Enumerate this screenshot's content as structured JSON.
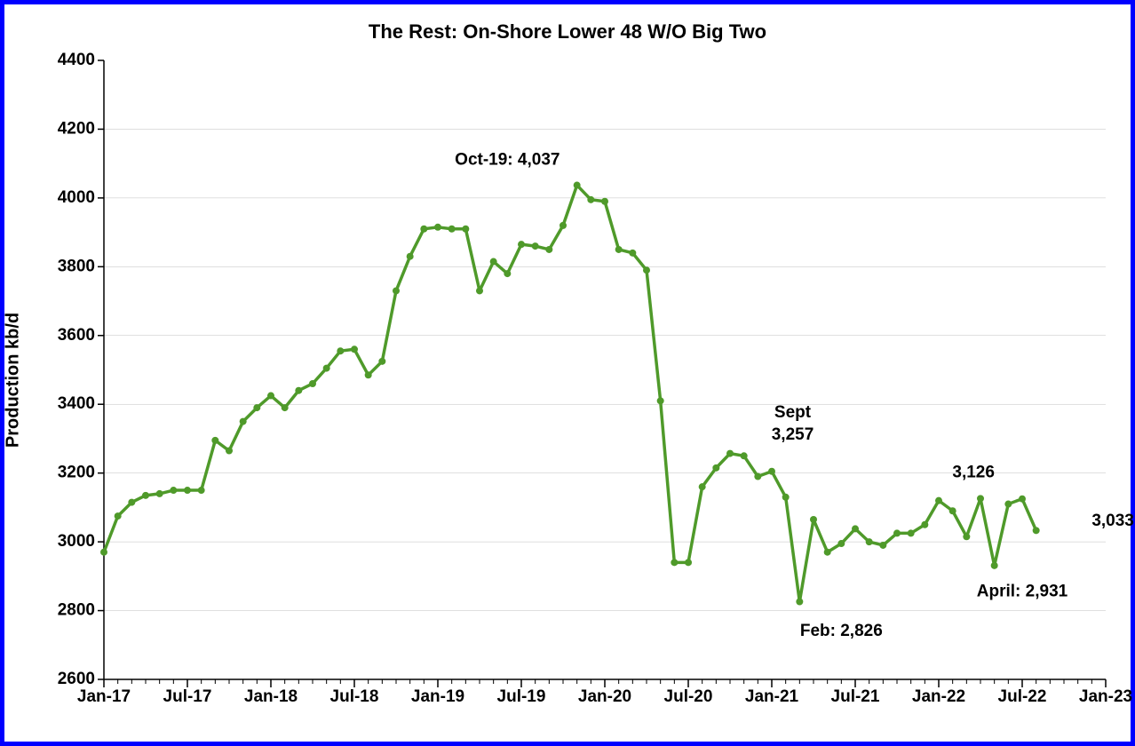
{
  "chart": {
    "type": "line",
    "title": "The Rest: On-Shore Lower 48 W/O Big Two",
    "title_fontsize": 22,
    "ylabel": "Production kb/d",
    "ylabel_fontsize": 20,
    "background_color": "#ffffff",
    "border_color": "#0000ff",
    "border_width": 5,
    "axis_color": "#000000",
    "grid_color": "#000000",
    "grid_opacity": 0.5,
    "label_fontsize": 19,
    "annotation_fontsize": 19,
    "ylim": [
      2600,
      4400
    ],
    "ytick_step": 200,
    "xlim_months": [
      0,
      72
    ],
    "xtick_labels": [
      "Jan-17",
      "Jul-17",
      "Jan-18",
      "Jul-18",
      "Jan-19",
      "Jul-19",
      "Jan-20",
      "Jul-20",
      "Jan-21",
      "Jul-21",
      "Jan-22",
      "Jul-22",
      "Jan-23"
    ],
    "xtick_months": [
      0,
      6,
      12,
      18,
      24,
      30,
      36,
      42,
      48,
      54,
      60,
      66,
      72
    ],
    "xminor_step": 1,
    "series": {
      "color": "#4f9a2a",
      "line_width": 3.5,
      "marker": "circle",
      "marker_size": 4,
      "x_months": [
        0,
        1,
        2,
        3,
        4,
        5,
        6,
        7,
        8,
        9,
        10,
        11,
        12,
        13,
        14,
        15,
        16,
        17,
        18,
        19,
        20,
        21,
        22,
        23,
        24,
        25,
        26,
        27,
        28,
        29,
        30,
        31,
        32,
        33,
        34,
        35,
        36,
        37,
        38,
        39,
        40,
        41,
        42,
        43,
        44,
        45,
        46,
        47,
        48,
        49,
        50,
        51,
        52,
        53,
        54,
        55,
        56,
        57,
        58,
        59,
        60,
        61,
        62,
        63,
        64,
        65,
        66,
        67
      ],
      "y": [
        2970,
        3075,
        3115,
        3135,
        3140,
        3150,
        3150,
        3150,
        3295,
        3265,
        3350,
        3390,
        3425,
        3390,
        3440,
        3460,
        3505,
        3555,
        3560,
        3485,
        3525,
        3730,
        3830,
        3910,
        3915,
        3910,
        3910,
        3730,
        3815,
        3780,
        3865,
        3860,
        3850,
        3920,
        4037,
        3995,
        3990,
        3850,
        3840,
        3790,
        3410,
        2940,
        2940,
        3160,
        3215,
        3257,
        3250,
        3190,
        3205,
        3130,
        2826,
        3065,
        2970,
        2995,
        3038,
        3000,
        2990,
        3025,
        3025,
        3050,
        3120,
        3090,
        3015,
        3126,
        2931,
        3110,
        3125,
        3033
      ]
    },
    "annotations": [
      {
        "text": "Oct-19: 4,037",
        "x_month": 29,
        "y": 4110,
        "anchor": "middle"
      },
      {
        "text": "Sept",
        "x_month": 49.5,
        "y": 3375,
        "anchor": "middle"
      },
      {
        "text": "3,257",
        "x_month": 49.5,
        "y": 3310,
        "anchor": "middle"
      },
      {
        "text": "Feb: 2,826",
        "x_month": 53,
        "y": 2740,
        "anchor": "middle"
      },
      {
        "text": "3,126",
        "x_month": 62.5,
        "y": 3200,
        "anchor": "middle"
      },
      {
        "text": "April: 2,931",
        "x_month": 66,
        "y": 2855,
        "anchor": "middle"
      },
      {
        "text": "3,033",
        "x_month": 71,
        "y": 3060,
        "anchor": "start"
      }
    ]
  }
}
